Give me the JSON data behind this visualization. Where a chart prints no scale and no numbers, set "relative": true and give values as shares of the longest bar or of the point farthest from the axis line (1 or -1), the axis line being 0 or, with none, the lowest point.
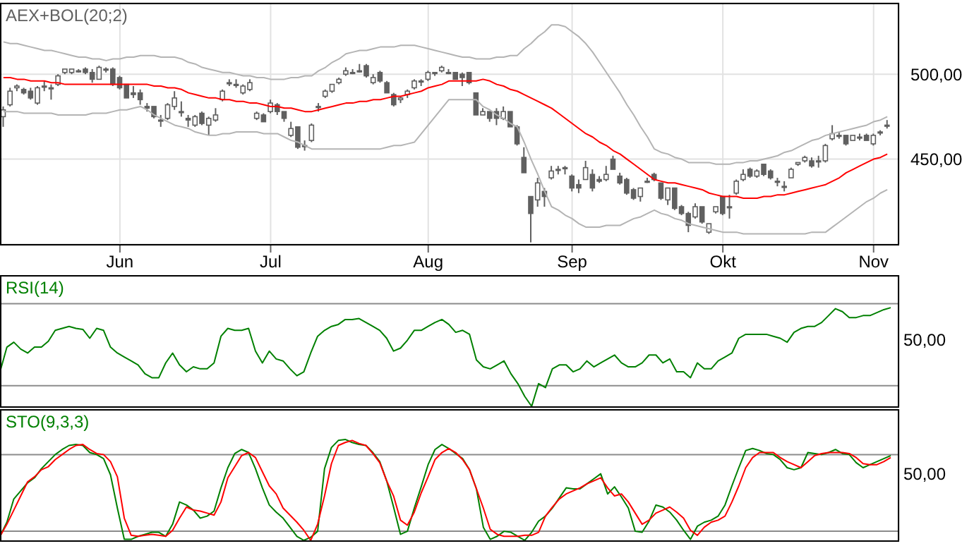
{
  "chart_data": [
    {
      "type": "candlestick",
      "title": "AEX+BOL(20;2)",
      "color": "#606060",
      "categories": [
        null,
        null,
        null,
        null,
        null,
        null,
        null,
        null,
        null,
        null,
        null,
        null,
        null,
        null,
        null,
        null,
        null,
        "Jun",
        null,
        null,
        null,
        null,
        null,
        null,
        null,
        null,
        null,
        null,
        null,
        null,
        null,
        null,
        null,
        null,
        null,
        null,
        null,
        null,
        null,
        "Jul",
        null,
        null,
        null,
        null,
        null,
        null,
        null,
        null,
        null,
        null,
        null,
        null,
        null,
        null,
        null,
        null,
        null,
        null,
        null,
        null,
        null,
        null,
        "Aug",
        null,
        null,
        null,
        null,
        null,
        null,
        null,
        null,
        null,
        null,
        null,
        null,
        null,
        null,
        null,
        null,
        null,
        null,
        null,
        null,
        "Sep",
        null,
        null,
        null,
        null,
        null,
        null,
        null,
        null,
        null,
        null,
        null,
        null,
        null,
        null,
        null,
        null,
        null,
        null,
        null,
        null,
        null,
        "Okt",
        null,
        null,
        null,
        null,
        null,
        null,
        null,
        null,
        null,
        null,
        null,
        null,
        null,
        null,
        null,
        null,
        null,
        null,
        null,
        null,
        null,
        "Nov",
        null,
        null
      ],
      "ohlc": [
        [
          475,
          481,
          469,
          479
        ],
        [
          482,
          492,
          481,
          490
        ],
        [
          492,
          494,
          490,
          493
        ],
        [
          491,
          492,
          488,
          489
        ],
        [
          490,
          492,
          485,
          486
        ],
        [
          483,
          493,
          482,
          492
        ],
        [
          493,
          496,
          490,
          493
        ],
        [
          492,
          494,
          485,
          492
        ],
        [
          494,
          500,
          493,
          499
        ],
        [
          501,
          503,
          500,
          503
        ],
        [
          501,
          503,
          500,
          503
        ],
        [
          502,
          503,
          501,
          502
        ],
        [
          503,
          504,
          500,
          501
        ],
        [
          501,
          503,
          495,
          497
        ],
        [
          497,
          505,
          497,
          504
        ],
        [
          503,
          504,
          501,
          503
        ],
        [
          503,
          504,
          493,
          494
        ],
        [
          498,
          499,
          491,
          492
        ],
        [
          494,
          494,
          486,
          486
        ],
        [
          489,
          493,
          486,
          488
        ],
        [
          489,
          491,
          482,
          485
        ],
        [
          481,
          483,
          478,
          480
        ],
        [
          481,
          481,
          474,
          475
        ],
        [
          473,
          476,
          469,
          473
        ],
        [
          474,
          483,
          473,
          482
        ],
        [
          481,
          490,
          479,
          486
        ],
        [
          478,
          484,
          475,
          478
        ],
        [
          474,
          476,
          469,
          473
        ],
        [
          470,
          476,
          469,
          475
        ],
        [
          477,
          478,
          470,
          471
        ],
        [
          470,
          475,
          464,
          474
        ],
        [
          473,
          480,
          472,
          476
        ],
        [
          485,
          491,
          484,
          490
        ],
        [
          495,
          497,
          493,
          495
        ],
        [
          494,
          497,
          492,
          494
        ],
        [
          489,
          494,
          488,
          493
        ],
        [
          491,
          497,
          490,
          495
        ],
        [
          474,
          478,
          473,
          477
        ],
        [
          476,
          477,
          472,
          472
        ],
        [
          478,
          485,
          477,
          483
        ],
        [
          482,
          483,
          476,
          478
        ],
        [
          478,
          478,
          472,
          474
        ],
        [
          464,
          472,
          463,
          468
        ],
        [
          469,
          469,
          456,
          457
        ],
        [
          458,
          461,
          455,
          458
        ],
        [
          461,
          471,
          460,
          470
        ],
        [
          481,
          483,
          478,
          481
        ],
        [
          487,
          491,
          486,
          490
        ],
        [
          490,
          494,
          489,
          494
        ],
        [
          495,
          498,
          494,
          497
        ],
        [
          500,
          504,
          499,
          502
        ],
        [
          501,
          503,
          500,
          501
        ],
        [
          502,
          506,
          501,
          502
        ],
        [
          505,
          506,
          498,
          499
        ],
        [
          495,
          500,
          494,
          498
        ],
        [
          501,
          502,
          495,
          496
        ],
        [
          495,
          496,
          489,
          489
        ],
        [
          488,
          489,
          481,
          482
        ],
        [
          485,
          487,
          483,
          486
        ],
        [
          488,
          491,
          486,
          490
        ],
        [
          492,
          497,
          491,
          496
        ],
        [
          496,
          497,
          493,
          496
        ],
        [
          497,
          502,
          496,
          501
        ],
        [
          501,
          501,
          499,
          501
        ],
        [
          502,
          505,
          501,
          504
        ],
        [
          501,
          503,
          500,
          501
        ],
        [
          501,
          501,
          497,
          497
        ],
        [
          500,
          501,
          493,
          498
        ],
        [
          501,
          501,
          494,
          495
        ],
        [
          489,
          489,
          476,
          476
        ],
        [
          476,
          480,
          476,
          478
        ],
        [
          478,
          478,
          472,
          474
        ],
        [
          478,
          480,
          470,
          474
        ],
        [
          474,
          481,
          473,
          478
        ],
        [
          478,
          478,
          469,
          469
        ],
        [
          469,
          470,
          458,
          459
        ],
        [
          451,
          457,
          442,
          442
        ],
        [
          428,
          428,
          401,
          418
        ],
        [
          426,
          439,
          422,
          436
        ],
        [
          431,
          433,
          422,
          428
        ],
        [
          439,
          446,
          438,
          443
        ],
        [
          444,
          446,
          441,
          444
        ],
        [
          445,
          446,
          441,
          445
        ],
        [
          440,
          441,
          431,
          433
        ],
        [
          435,
          438,
          430,
          433
        ],
        [
          438,
          449,
          438,
          445
        ],
        [
          441,
          444,
          431,
          433
        ],
        [
          438,
          440,
          436,
          437
        ],
        [
          438,
          446,
          437,
          441
        ],
        [
          450,
          452,
          444,
          444
        ],
        [
          440,
          442,
          435,
          436
        ],
        [
          438,
          439,
          429,
          430
        ],
        [
          432,
          433,
          426,
          427
        ],
        [
          428,
          433,
          425,
          433
        ],
        [
          437,
          439,
          436,
          437
        ],
        [
          441,
          442,
          437,
          438
        ],
        [
          436,
          436,
          426,
          427
        ],
        [
          426,
          433,
          423,
          433
        ],
        [
          433,
          433,
          420,
          421
        ],
        [
          422,
          423,
          417,
          418
        ],
        [
          418,
          419,
          407,
          411
        ],
        [
          416,
          424,
          415,
          422
        ],
        [
          422,
          422,
          412,
          413
        ],
        [
          407,
          412,
          406,
          412
        ],
        [
          419,
          422,
          418,
          422
        ],
        [
          428,
          428,
          417,
          418
        ],
        [
          422,
          429,
          415,
          422
        ],
        [
          430,
          438,
          429,
          437
        ],
        [
          438,
          444,
          437,
          441
        ],
        [
          444,
          445,
          439,
          440
        ],
        [
          440,
          444,
          439,
          443
        ],
        [
          447,
          447,
          440,
          441
        ],
        [
          443,
          444,
          438,
          439
        ],
        [
          437,
          439,
          434,
          437
        ],
        [
          434,
          437,
          431,
          434
        ],
        [
          439,
          445,
          439,
          444
        ],
        [
          447,
          448,
          446,
          448
        ],
        [
          449,
          452,
          448,
          451
        ],
        [
          449,
          451,
          445,
          446
        ],
        [
          449,
          452,
          445,
          449
        ],
        [
          449,
          459,
          448,
          458
        ],
        [
          462,
          470,
          461,
          465
        ],
        [
          464,
          466,
          462,
          464
        ],
        [
          464,
          464,
          458,
          459
        ],
        [
          461,
          464,
          461,
          464
        ],
        [
          463,
          465,
          461,
          463
        ],
        [
          464,
          465,
          461,
          461
        ],
        [
          459,
          465,
          458,
          464
        ],
        [
          466,
          467,
          464,
          466
        ],
        [
          470,
          473,
          468,
          470
        ]
      ],
      "series": [
        {
          "type": "line",
          "color": "#b4b4b4",
          "values": [
            519,
            518,
            518,
            517,
            516,
            515,
            514,
            514,
            513,
            512,
            511,
            510,
            510,
            509,
            509,
            508,
            509,
            509,
            510,
            510,
            511,
            511,
            511,
            510,
            510,
            510,
            509,
            507,
            506,
            504,
            503,
            502,
            501,
            501,
            500,
            499,
            499,
            498,
            498,
            497,
            497,
            497,
            498,
            498,
            499,
            499,
            502,
            504,
            507,
            509,
            512,
            513,
            514,
            514,
            515,
            516,
            516,
            516,
            517,
            517,
            517,
            516,
            515,
            514,
            513,
            512,
            511,
            510,
            510,
            509,
            509,
            509,
            510,
            510,
            511,
            511,
            515,
            518,
            522,
            525,
            529,
            529,
            528,
            525,
            522,
            518,
            513,
            507,
            501,
            495,
            489,
            482,
            476,
            469,
            463,
            456,
            454,
            453,
            451,
            450,
            448,
            448,
            448,
            448,
            447,
            447,
            447,
            448,
            448,
            449,
            449,
            450,
            451,
            452,
            454,
            455,
            457,
            459,
            461,
            462,
            464,
            465,
            466,
            467,
            468,
            469,
            470,
            472,
            473,
            475
          ]
        },
        {
          "type": "line",
          "color": "#ff0000",
          "values": [
            498,
            498,
            497,
            497,
            496,
            496,
            496,
            495,
            495,
            494,
            494,
            494,
            494,
            494,
            494,
            494,
            494,
            494,
            494,
            494,
            494,
            494,
            493,
            493,
            492,
            492,
            491,
            489,
            488,
            487,
            486,
            486,
            485,
            485,
            484,
            484,
            483,
            483,
            482,
            481,
            481,
            480,
            480,
            479,
            478,
            478,
            479,
            480,
            481,
            482,
            483,
            483,
            484,
            484,
            485,
            485,
            486,
            487,
            487,
            488,
            489,
            490,
            492,
            493,
            494,
            496,
            496,
            496,
            496,
            496,
            497,
            496,
            494,
            493,
            491,
            490,
            488,
            486,
            484,
            482,
            480,
            477,
            474,
            471,
            468,
            465,
            463,
            460,
            458,
            455,
            453,
            450,
            447,
            444,
            441,
            438,
            437,
            436,
            436,
            435,
            434,
            433,
            432,
            430,
            429,
            428,
            428,
            428,
            427,
            427,
            427,
            428,
            428,
            429,
            429,
            430,
            431,
            432,
            433,
            434,
            435,
            437,
            439,
            442,
            444,
            446,
            448,
            450,
            451,
            453
          ]
        },
        {
          "type": "line",
          "color": "#b4b4b4",
          "values": [
            478,
            478,
            478,
            477,
            477,
            477,
            477,
            477,
            476,
            476,
            476,
            476,
            476,
            477,
            477,
            477,
            478,
            479,
            479,
            480,
            481,
            479,
            476,
            474,
            472,
            470,
            469,
            468,
            466,
            465,
            464,
            464,
            465,
            465,
            466,
            466,
            466,
            466,
            465,
            465,
            465,
            463,
            461,
            460,
            458,
            456,
            456,
            456,
            456,
            456,
            456,
            456,
            456,
            456,
            456,
            456,
            457,
            458,
            458,
            459,
            460,
            465,
            470,
            475,
            480,
            485,
            485,
            485,
            485,
            485,
            481,
            479,
            476,
            474,
            471,
            469,
            460,
            450,
            441,
            431,
            422,
            420,
            417,
            415,
            412,
            410,
            410,
            410,
            411,
            411,
            411,
            413,
            415,
            416,
            418,
            420,
            418,
            417,
            415,
            414,
            412,
            411,
            410,
            409,
            408,
            407,
            407,
            407,
            406,
            406,
            406,
            406,
            406,
            406,
            406,
            406,
            406,
            406,
            407,
            407,
            407,
            410,
            413,
            416,
            419,
            422,
            425,
            427,
            430,
            432
          ]
        }
      ],
      "ylim": [
        400,
        542
      ],
      "yticks": [
        {
          "value": 500,
          "label": "500,00"
        },
        {
          "value": 450,
          "label": "450,00"
        }
      ],
      "grid": true
    },
    {
      "type": "line",
      "title": "RSI(14)",
      "color": "#008000",
      "categories": [
        null,
        null,
        null,
        null,
        null,
        null,
        null,
        null,
        null,
        null,
        null,
        null,
        null,
        null,
        null,
        null,
        null,
        null,
        null,
        null,
        null,
        null,
        null,
        null,
        null,
        null,
        null,
        null,
        null,
        null,
        null,
        null,
        null,
        null,
        null,
        null,
        null,
        null,
        null,
        null,
        null,
        null,
        null,
        null,
        null,
        null,
        null,
        null,
        null,
        null,
        null,
        null,
        null,
        null,
        null,
        null,
        null,
        null,
        null,
        null,
        null,
        null,
        null,
        null,
        null,
        null,
        null,
        null,
        null,
        null,
        null,
        null,
        null,
        null,
        null,
        null,
        null,
        null,
        null,
        null,
        null,
        null,
        null,
        null,
        null,
        null,
        null,
        null,
        null,
        null,
        null,
        null,
        null,
        null,
        null,
        null,
        null,
        null,
        null,
        null,
        null,
        null,
        null,
        null,
        null,
        null,
        null,
        null,
        null,
        null,
        null,
        null,
        null,
        null,
        null,
        null,
        null,
        null,
        null,
        null,
        null,
        null,
        null,
        null,
        null,
        null,
        null,
        null,
        null,
        null
      ],
      "values": [
        0.35,
        0.6,
        0.65,
        0.58,
        0.54,
        0.6,
        0.6,
        0.66,
        0.77,
        0.79,
        0.81,
        0.79,
        0.78,
        0.69,
        0.79,
        0.77,
        0.6,
        0.54,
        0.5,
        0.46,
        0.42,
        0.33,
        0.29,
        0.29,
        0.44,
        0.54,
        0.42,
        0.35,
        0.4,
        0.38,
        0.38,
        0.44,
        0.71,
        0.79,
        0.77,
        0.77,
        0.79,
        0.56,
        0.44,
        0.56,
        0.48,
        0.46,
        0.38,
        0.31,
        0.35,
        0.54,
        0.71,
        0.77,
        0.81,
        0.83,
        0.88,
        0.88,
        0.89,
        0.85,
        0.81,
        0.77,
        0.69,
        0.56,
        0.59,
        0.67,
        0.77,
        0.77,
        0.81,
        0.85,
        0.88,
        0.83,
        0.75,
        0.77,
        0.73,
        0.47,
        0.4,
        0.38,
        0.42,
        0.46,
        0.33,
        0.23,
        0.1,
        0,
        0.23,
        0.19,
        0.38,
        0.42,
        0.42,
        0.35,
        0.38,
        0.46,
        0.4,
        0.44,
        0.48,
        0.52,
        0.44,
        0.4,
        0.4,
        0.44,
        0.52,
        0.52,
        0.44,
        0.48,
        0.35,
        0.35,
        0.29,
        0.44,
        0.38,
        0.38,
        0.46,
        0.5,
        0.54,
        0.69,
        0.73,
        0.73,
        0.73,
        0.73,
        0.71,
        0.69,
        0.65,
        0.75,
        0.79,
        0.81,
        0.81,
        0.85,
        0.92,
        0.99,
        0.96,
        0.9,
        0.9,
        0.92,
        0.92,
        0.95,
        0.98,
        1
      ],
      "relative": true,
      "annotations": [
        "50,00"
      ],
      "ref_lines": [
        {
          "axis": "y",
          "value": 1.04,
          "color": "#8c8c8c"
        },
        {
          "axis": "y",
          "value": 0.21,
          "color": "#8c8c8c"
        }
      ],
      "grid": "x",
      "tick_labels": false
    },
    {
      "type": "line",
      "title": "STO(9,3,3)",
      "categories": [
        null,
        null,
        null,
        null,
        null,
        null,
        null,
        null,
        null,
        null,
        null,
        null,
        null,
        null,
        null,
        null,
        null,
        null,
        null,
        null,
        null,
        null,
        null,
        null,
        null,
        null,
        null,
        null,
        null,
        null,
        null,
        null,
        null,
        null,
        null,
        null,
        null,
        null,
        null,
        null,
        null,
        null,
        null,
        null,
        null,
        null,
        null,
        null,
        null,
        null,
        null,
        null,
        null,
        null,
        null,
        null,
        null,
        null,
        null,
        null,
        null,
        null,
        null,
        null,
        null,
        null,
        null,
        null,
        null,
        null,
        null,
        null,
        null,
        null,
        null,
        null,
        null,
        null,
        null,
        null,
        null,
        null,
        null,
        null,
        null,
        null,
        null,
        null,
        null,
        null,
        null,
        null,
        null,
        null,
        null,
        null,
        null,
        null,
        null,
        null,
        null,
        null,
        null,
        null,
        null,
        null,
        null,
        null,
        null,
        null,
        null,
        null,
        null,
        null,
        null,
        null,
        null,
        null,
        null,
        null,
        null,
        null,
        null,
        null,
        null,
        null,
        null,
        null,
        null,
        null
      ],
      "series": [
        {
          "color": "#008000",
          "values": [
            0.04,
            0.18,
            0.41,
            0.49,
            0.57,
            0.62,
            0.71,
            0.78,
            0.85,
            0.9,
            0.94,
            0.95,
            0.94,
            0.87,
            0.85,
            0.81,
            0.65,
            0.32,
            0.01,
            0.01,
            0.04,
            0.06,
            0.08,
            0.08,
            0.04,
            0.16,
            0.38,
            0.35,
            0.3,
            0.22,
            0.24,
            0.29,
            0.52,
            0.72,
            0.86,
            0.9,
            0.87,
            0.71,
            0.52,
            0.35,
            0.28,
            0.22,
            0.13,
            0.04,
            0,
            0.03,
            0.09,
            0.71,
            0.92,
            0.99,
            1,
            0.97,
            0.95,
            0.94,
            0.87,
            0.78,
            0.59,
            0.33,
            0.06,
            0.09,
            0.32,
            0.53,
            0.75,
            0.9,
            0.95,
            0.91,
            0.86,
            0.81,
            0.7,
            0.51,
            0.13,
            0.01,
            0.04,
            0.09,
            0.08,
            0.04,
            0,
            0.08,
            0.19,
            0.24,
            0.32,
            0.42,
            0.52,
            0.51,
            0.51,
            0.56,
            0.61,
            0.66,
            0.46,
            0.53,
            0.43,
            0.32,
            0.09,
            0.08,
            0.19,
            0.35,
            0.33,
            0.28,
            0.2,
            0.1,
            0.01,
            0.14,
            0.18,
            0.2,
            0.24,
            0.35,
            0.54,
            0.72,
            0.89,
            0.91,
            0.89,
            0.86,
            0.85,
            0.8,
            0.72,
            0.7,
            0.72,
            0.87,
            0.86,
            0.85,
            0.87,
            0.9,
            0.86,
            0.85,
            0.77,
            0.72,
            0.75,
            0.78,
            0.81,
            0.84
          ]
        },
        {
          "color": "#ff0000",
          "values": [
            0.04,
            0.16,
            0.3,
            0.44,
            0.58,
            0.63,
            0.7,
            0.73,
            0.8,
            0.85,
            0.9,
            0.94,
            0.95,
            0.9,
            0.86,
            0.85,
            0.78,
            0.63,
            0.22,
            0.05,
            0.04,
            0.05,
            0.06,
            0.05,
            0.04,
            0.1,
            0.22,
            0.33,
            0.3,
            0.29,
            0.27,
            0.25,
            0.38,
            0.62,
            0.73,
            0.84,
            0.87,
            0.82,
            0.68,
            0.54,
            0.46,
            0.32,
            0.25,
            0.18,
            0.1,
            0,
            0.16,
            0.44,
            0.76,
            0.94,
            0.97,
            0.99,
            0.96,
            0.94,
            0.86,
            0.77,
            0.59,
            0.44,
            0.2,
            0.15,
            0.28,
            0.47,
            0.63,
            0.8,
            0.87,
            0.91,
            0.87,
            0.8,
            0.7,
            0.51,
            0.32,
            0.11,
            0.06,
            0.04,
            0.04,
            0.04,
            0.05,
            0.05,
            0.08,
            0.24,
            0.33,
            0.41,
            0.46,
            0.49,
            0.52,
            0.56,
            0.59,
            0.62,
            0.52,
            0.44,
            0.46,
            0.38,
            0.27,
            0.16,
            0.2,
            0.27,
            0.3,
            0.33,
            0.28,
            0.22,
            0.1,
            0.05,
            0.13,
            0.18,
            0.2,
            0.24,
            0.38,
            0.54,
            0.72,
            0.82,
            0.87,
            0.87,
            0.87,
            0.82,
            0.78,
            0.75,
            0.72,
            0.78,
            0.84,
            0.86,
            0.87,
            0.87,
            0.87,
            0.86,
            0.82,
            0.76,
            0.75,
            0.75,
            0.78,
            0.82
          ]
        }
      ],
      "relative": true,
      "annotations": [
        "50,00"
      ],
      "ref_lines": [
        {
          "axis": "y",
          "value": 0.85,
          "color": "#8c8c8c"
        },
        {
          "axis": "y",
          "value": 0.09,
          "color": "#8c8c8c"
        }
      ],
      "grid": "x",
      "tick_labels": false
    }
  ]
}
